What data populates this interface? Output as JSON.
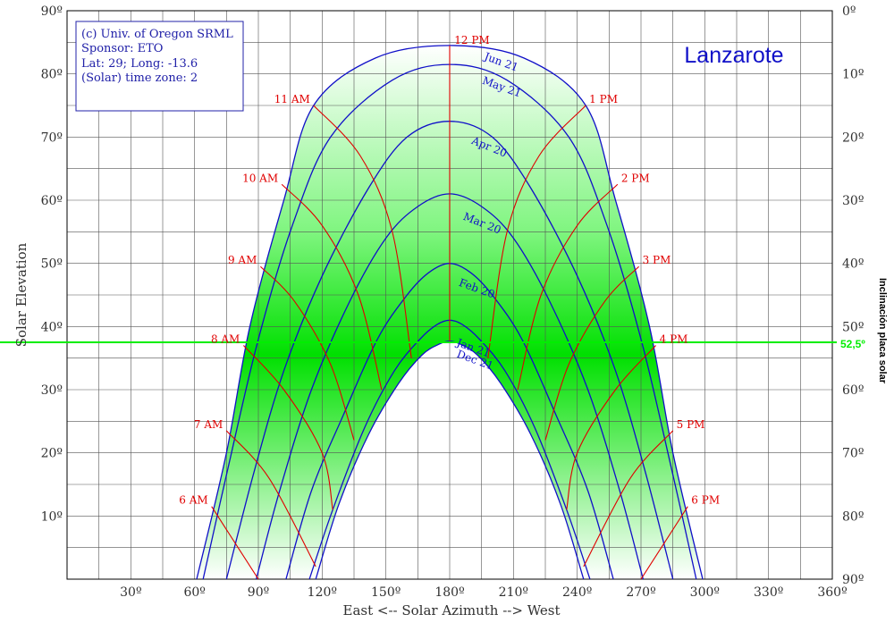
{
  "chart_data": {
    "type": "line",
    "title": "Lanzarote",
    "xlabel": "East <-- Solar Azimuth --> West",
    "ylabel": "Solar Elevation",
    "y2label": "Inclinación placa solar",
    "xlim": [
      0,
      360
    ],
    "ylim": [
      0,
      90
    ],
    "grid": true,
    "x_ticks": [
      "30º",
      "60º",
      "90º",
      "120º",
      "150º",
      "180º",
      "210º",
      "240º",
      "270º",
      "300º",
      "330º",
      "360º"
    ],
    "y_ticks": [
      "10º",
      "20º",
      "30º",
      "40º",
      "50º",
      "60º",
      "70º",
      "80º",
      "90º"
    ],
    "y2_ticks": [
      "0º",
      "10º",
      "20º",
      "30º",
      "40º",
      "50º",
      "60º",
      "70º",
      "80º",
      "90º"
    ],
    "info_box": [
      "(c) Univ. of Oregon SRML",
      "Sponsor: ETO",
      "Lat: 29; Long: -13.6",
      "(Solar) time zone: 2"
    ],
    "panel_line": {
      "elevation": 37.5,
      "label": "52,5º",
      "color": "#00ee00"
    },
    "colors": {
      "date_curves": "#1010c8",
      "hour_lines": "#e00000",
      "panel_line": "#00ee00",
      "fill": "#00e000",
      "title": "#1010c8"
    },
    "date_curves": [
      {
        "label": "Jun 21",
        "points": [
          [
            61,
            0
          ],
          [
            75,
            20
          ],
          [
            86,
            40
          ],
          [
            102,
            60
          ],
          [
            116,
            75
          ],
          [
            145,
            82.5
          ],
          [
            180,
            84.5
          ],
          [
            215,
            82.5
          ],
          [
            244,
            75
          ],
          [
            258,
            60
          ],
          [
            274,
            40
          ],
          [
            285,
            20
          ],
          [
            299,
            0
          ]
        ]
      },
      {
        "label": "May 21",
        "points": [
          [
            64,
            0
          ],
          [
            76,
            18
          ],
          [
            90,
            38
          ],
          [
            106,
            56
          ],
          [
            124,
            70
          ],
          [
            153,
            79
          ],
          [
            180,
            81.5
          ],
          [
            207,
            79
          ],
          [
            236,
            70
          ],
          [
            254,
            56
          ],
          [
            270,
            38
          ],
          [
            284,
            18
          ],
          [
            296,
            0
          ]
        ]
      },
      {
        "label": "Apr 20",
        "points": [
          [
            75,
            0
          ],
          [
            88,
            17
          ],
          [
            102,
            33
          ],
          [
            120,
            48
          ],
          [
            142,
            62
          ],
          [
            160,
            70
          ],
          [
            180,
            72.5
          ],
          [
            200,
            70
          ],
          [
            218,
            62
          ],
          [
            240,
            48
          ],
          [
            258,
            33
          ],
          [
            272,
            17
          ],
          [
            285,
            0
          ]
        ]
      },
      {
        "label": "Mar 20",
        "points": [
          [
            89,
            0
          ],
          [
            100,
            14
          ],
          [
            115,
            30
          ],
          [
            133,
            44
          ],
          [
            150,
            54
          ],
          [
            165,
            59
          ],
          [
            180,
            61
          ],
          [
            195,
            59
          ],
          [
            210,
            54
          ],
          [
            227,
            44
          ],
          [
            245,
            30
          ],
          [
            260,
            14
          ],
          [
            271,
            0
          ]
        ]
      },
      {
        "label": "Feb 20",
        "points": [
          [
            103,
            0
          ],
          [
            115,
            14
          ],
          [
            130,
            26
          ],
          [
            146,
            38
          ],
          [
            160,
            45
          ],
          [
            170,
            48.5
          ],
          [
            180,
            50
          ],
          [
            190,
            48.5
          ],
          [
            200,
            45
          ],
          [
            214,
            38
          ],
          [
            230,
            26
          ],
          [
            245,
            14
          ],
          [
            257,
            0
          ]
        ]
      },
      {
        "label": "Jan 21",
        "points": [
          [
            114,
            0
          ],
          [
            125,
            11
          ],
          [
            140,
            24
          ],
          [
            154,
            33
          ],
          [
            166,
            38
          ],
          [
            174,
            40.3
          ],
          [
            180,
            41
          ],
          [
            186,
            40.3
          ],
          [
            194,
            38
          ],
          [
            206,
            33
          ],
          [
            220,
            24
          ],
          [
            235,
            11
          ],
          [
            246,
            0
          ]
        ]
      },
      {
        "label": "Dec 21",
        "points": [
          [
            117,
            0
          ],
          [
            128,
            12
          ],
          [
            142,
            23
          ],
          [
            156,
            31
          ],
          [
            167,
            35.5
          ],
          [
            175,
            37.2
          ],
          [
            180,
            37.7
          ],
          [
            185,
            37.2
          ],
          [
            193,
            35.5
          ],
          [
            204,
            31
          ],
          [
            218,
            23
          ],
          [
            232,
            12
          ],
          [
            243,
            0
          ]
        ]
      }
    ],
    "hour_lines": [
      {
        "label": "6 AM",
        "points": [
          [
            68,
            11.5
          ],
          [
            90,
            0
          ]
        ]
      },
      {
        "label": "7 AM",
        "points": [
          [
            75,
            23.5
          ],
          [
            95,
            16
          ],
          [
            117,
            2
          ]
        ]
      },
      {
        "label": "8 AM",
        "points": [
          [
            83,
            37
          ],
          [
            102,
            30
          ],
          [
            120,
            20
          ],
          [
            125,
            11
          ]
        ]
      },
      {
        "label": "9 AM",
        "points": [
          [
            91,
            49.5
          ],
          [
            107,
            44
          ],
          [
            124,
            34
          ],
          [
            135,
            22
          ]
        ]
      },
      {
        "label": "10 AM",
        "points": [
          [
            101,
            62.5
          ],
          [
            120,
            56
          ],
          [
            137,
            45
          ],
          [
            148,
            30
          ]
        ]
      },
      {
        "label": "11 AM",
        "points": [
          [
            116,
            75
          ],
          [
            138,
            67
          ],
          [
            153,
            55
          ],
          [
            162,
            35
          ]
        ]
      },
      {
        "label": "12 PM",
        "points": [
          [
            180,
            84.5
          ],
          [
            180,
            37.7
          ]
        ]
      },
      {
        "label": "1 PM",
        "points": [
          [
            244,
            75
          ],
          [
            222,
            67
          ],
          [
            207,
            55
          ],
          [
            198,
            35
          ]
        ]
      },
      {
        "label": "2 PM",
        "points": [
          [
            259,
            62.5
          ],
          [
            240,
            56
          ],
          [
            223,
            45
          ],
          [
            212,
            30
          ]
        ]
      },
      {
        "label": "3 PM",
        "points": [
          [
            269,
            49.5
          ],
          [
            253,
            44
          ],
          [
            236,
            34
          ],
          [
            225,
            22
          ]
        ]
      },
      {
        "label": "4 PM",
        "points": [
          [
            277,
            37
          ],
          [
            258,
            30
          ],
          [
            240,
            20
          ],
          [
            235,
            11
          ]
        ]
      },
      {
        "label": "5 PM",
        "points": [
          [
            285,
            23.5
          ],
          [
            265,
            16
          ],
          [
            243,
            2
          ]
        ]
      },
      {
        "label": "6 PM",
        "points": [
          [
            292,
            11.5
          ],
          [
            270,
            0
          ]
        ]
      }
    ]
  }
}
